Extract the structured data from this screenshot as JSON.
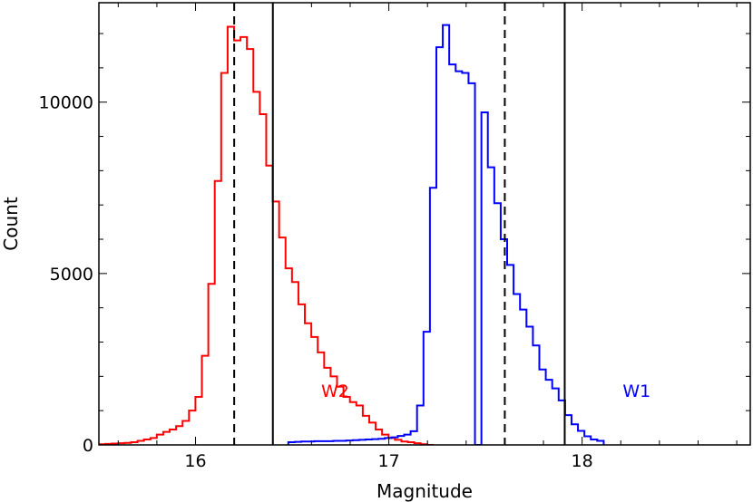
{
  "chart_data": {
    "type": "histogram",
    "title": "",
    "xlabel": "Magnitude",
    "ylabel": "Count",
    "xlim": [
      15.5,
      18.87
    ],
    "ylim": [
      0,
      12900
    ],
    "xticks": [
      16,
      17,
      18
    ],
    "xtick_labels": [
      "16",
      "17",
      "18"
    ],
    "yticks": [
      0,
      5000,
      10000
    ],
    "ytick_labels": [
      "0",
      "5000",
      "10000"
    ],
    "bin_width": 0.0333,
    "series": [
      {
        "name": "W2",
        "label": "W2",
        "color": "#ff0000",
        "bin_start": 15.5,
        "values": [
          20,
          30,
          40,
          50,
          60,
          80,
          120,
          160,
          200,
          300,
          380,
          450,
          550,
          700,
          1000,
          1400,
          2600,
          4700,
          7700,
          10850,
          12200,
          11800,
          11900,
          11550,
          10300,
          9650,
          8150,
          7100,
          6050,
          5150,
          4750,
          4100,
          3550,
          3150,
          2700,
          2250,
          2000,
          1700,
          1400,
          1250,
          1150,
          850,
          650,
          450,
          300,
          200,
          150,
          100,
          80,
          50,
          20,
          0
        ],
        "label_at": [
          16.65,
          1400
        ]
      },
      {
        "name": "W1",
        "label": "W1",
        "color": "#0000ff",
        "bin_start": 16.48,
        "values": [
          80,
          90,
          100,
          100,
          110,
          110,
          110,
          120,
          120,
          130,
          140,
          150,
          160,
          170,
          180,
          200,
          220,
          260,
          300,
          400,
          1150,
          3300,
          7500,
          11600,
          12250,
          11100,
          10900,
          10850,
          10550,
          0,
          9700,
          8100,
          7050,
          6000,
          5250,
          4400,
          3950,
          3450,
          2900,
          2200,
          1900,
          1650,
          1300,
          870,
          600,
          410,
          250,
          160,
          120
        ],
        "label_at": [
          18.21,
          1400
        ]
      }
    ],
    "vertical_lines": [
      {
        "name": "W2 dashed",
        "x": 16.2,
        "style": "dashed"
      },
      {
        "name": "W2 solid",
        "x": 16.4,
        "style": "solid"
      },
      {
        "name": "W1 dashed",
        "x": 17.6,
        "style": "dashed"
      },
      {
        "name": "W1 solid",
        "x": 17.91,
        "style": "solid"
      }
    ]
  }
}
